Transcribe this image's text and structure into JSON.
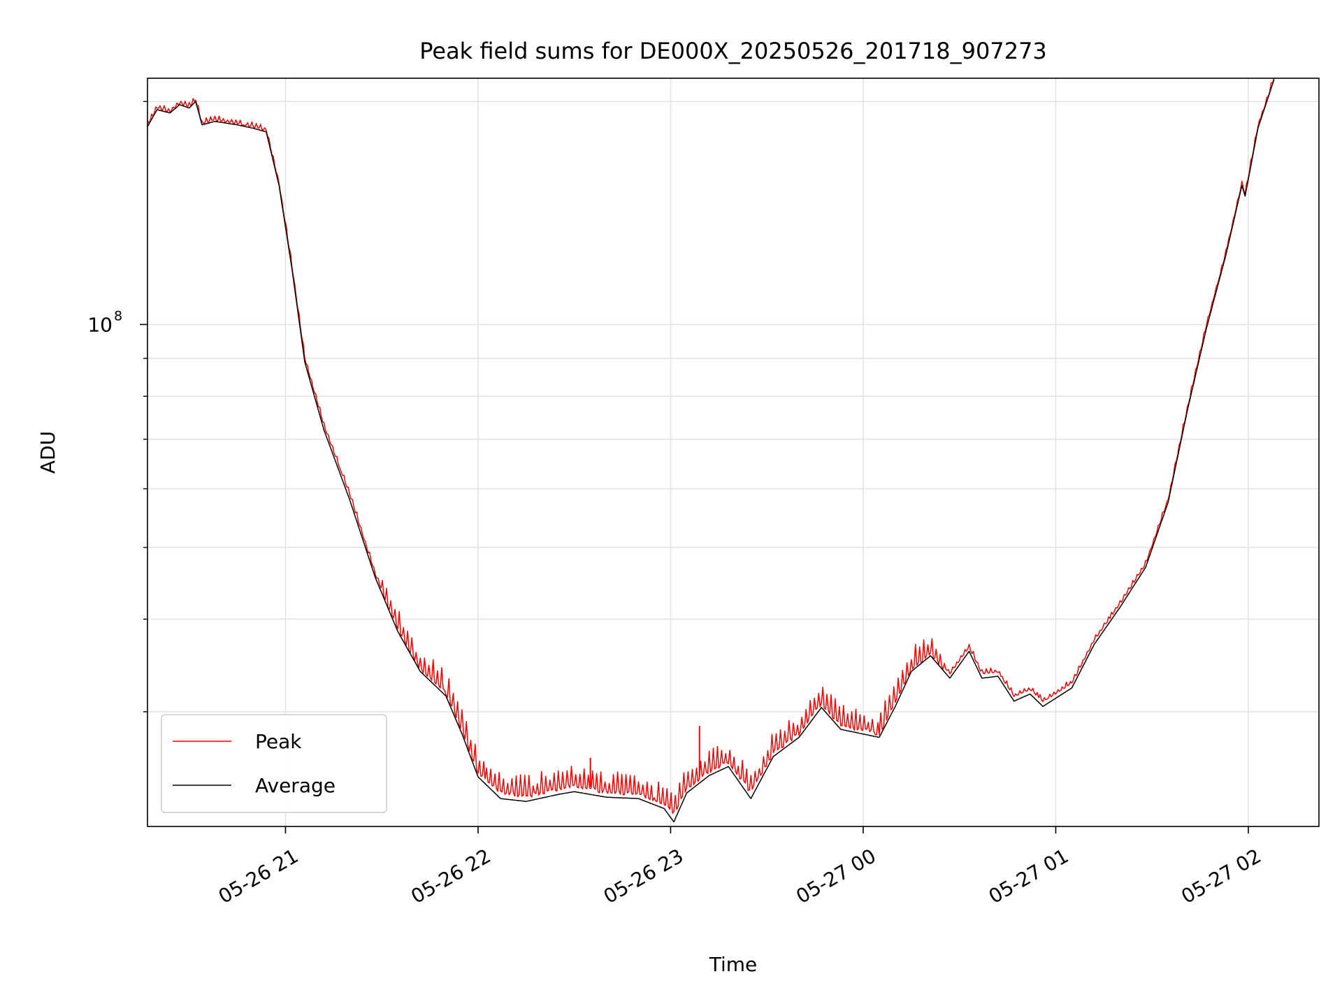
{
  "chart_data": {
    "type": "line",
    "title": "Peak field sums for DE000X_20250526_201718_907273",
    "xlabel": "Time",
    "ylabel": "ADU",
    "yscale": "log",
    "xlim": [
      "2025-05-26 20:17",
      "2025-05-27 02:22"
    ],
    "ylim": [
      21000000,
      215000000
    ],
    "x_ticks": [
      {
        "t": "2025-05-26 21:00",
        "label": "05-26 21"
      },
      {
        "t": "2025-05-26 22:00",
        "label": "05-26 22"
      },
      {
        "t": "2025-05-26 23:00",
        "label": "05-26 23"
      },
      {
        "t": "2025-05-27 00:00",
        "label": "05-27 00"
      },
      {
        "t": "2025-05-27 01:00",
        "label": "05-27 01"
      },
      {
        "t": "2025-05-27 02:00",
        "label": "05-27 02"
      }
    ],
    "y_major_ticks": [
      {
        "value": 100000000,
        "label": "10",
        "exponent": "8"
      }
    ],
    "y_minor_ticks": [
      30000000,
      40000000,
      50000000,
      60000000,
      70000000,
      80000000,
      90000000,
      200000000
    ],
    "grid": true,
    "legend_position": "lower-left",
    "series": [
      {
        "name": "Peak",
        "color": "#ff0000",
        "jitter": true,
        "points": [
          [
            "2025-05-26 20:17",
            186000000
          ],
          [
            "2025-05-26 20:20",
            196000000
          ],
          [
            "2025-05-26 20:24",
            194000000
          ],
          [
            "2025-05-26 20:27",
            199000000
          ],
          [
            "2025-05-26 20:30",
            197000000
          ],
          [
            "2025-05-26 20:32",
            201000000
          ],
          [
            "2025-05-26 20:34",
            187000000
          ],
          [
            "2025-05-26 20:38",
            189000000
          ],
          [
            "2025-05-26 20:45",
            187000000
          ],
          [
            "2025-05-26 20:50",
            185000000
          ],
          [
            "2025-05-26 20:54",
            183000000
          ],
          [
            "2025-05-26 20:58",
            155000000
          ],
          [
            "2025-05-26 21:02",
            120000000
          ],
          [
            "2025-05-26 21:06",
            90000000
          ],
          [
            "2025-05-26 21:12",
            73000000
          ],
          [
            "2025-05-26 21:20",
            59000000
          ],
          [
            "2025-05-26 21:28",
            46000000
          ],
          [
            "2025-05-26 21:35",
            39000000
          ],
          [
            "2025-05-26 21:42",
            34500000
          ],
          [
            "2025-05-26 21:50",
            32000000
          ],
          [
            "2025-05-26 21:55",
            28500000
          ],
          [
            "2025-05-26 22:00",
            25000000
          ],
          [
            "2025-05-26 22:07",
            23500000
          ],
          [
            "2025-05-26 22:15",
            23200000
          ],
          [
            "2025-05-26 22:25",
            23700000
          ],
          [
            "2025-05-26 22:30",
            24000000
          ],
          [
            "2025-05-26 22:40",
            23500000
          ],
          [
            "2025-05-26 22:50",
            23400000
          ],
          [
            "2025-05-26 22:58",
            22700000
          ],
          [
            "2025-05-26 23:01",
            22000000
          ],
          [
            "2025-05-26 23:05",
            23800000
          ],
          [
            "2025-05-26 23:12",
            25100000
          ],
          [
            "2025-05-26 23:18",
            25800000
          ],
          [
            "2025-05-26 23:25",
            23500000
          ],
          [
            "2025-05-26 23:32",
            26600000
          ],
          [
            "2025-05-26 23:40",
            28200000
          ],
          [
            "2025-05-26 23:47",
            31000000
          ],
          [
            "2025-05-26 23:53",
            28900000
          ],
          [
            "2025-05-27 00:05",
            28200000
          ],
          [
            "2025-05-27 00:10",
            31000000
          ],
          [
            "2025-05-27 00:15",
            34500000
          ],
          [
            "2025-05-27 00:21",
            36200000
          ],
          [
            "2025-05-27 00:27",
            33800000
          ],
          [
            "2025-05-27 00:33",
            36700000
          ],
          [
            "2025-05-27 00:37",
            33800000
          ],
          [
            "2025-05-27 00:42",
            34000000
          ],
          [
            "2025-05-27 00:47",
            31500000
          ],
          [
            "2025-05-27 00:52",
            32200000
          ],
          [
            "2025-05-27 00:56",
            31000000
          ],
          [
            "2025-05-27 01:05",
            32800000
          ],
          [
            "2025-05-27 01:12",
            37500000
          ],
          [
            "2025-05-27 01:20",
            42000000
          ],
          [
            "2025-05-27 01:28",
            47500000
          ],
          [
            "2025-05-27 01:35",
            58000000
          ],
          [
            "2025-05-27 01:41",
            77000000
          ],
          [
            "2025-05-27 01:47",
            100000000
          ],
          [
            "2025-05-27 01:53",
            125000000
          ],
          [
            "2025-05-27 01:58",
            155000000
          ],
          [
            "2025-05-27 01:59",
            150000000
          ],
          [
            "2025-05-27 02:03",
            185000000
          ],
          [
            "2025-05-27 02:08",
            215000000
          ]
        ]
      },
      {
        "name": "Average",
        "color": "#000000",
        "jitter": false,
        "points": [
          [
            "2025-05-26 20:17",
            185000000
          ],
          [
            "2025-05-26 20:20",
            195000000
          ],
          [
            "2025-05-26 20:24",
            193000000
          ],
          [
            "2025-05-26 20:27",
            198000000
          ],
          [
            "2025-05-26 20:30",
            196000000
          ],
          [
            "2025-05-26 20:32",
            200000000
          ],
          [
            "2025-05-26 20:34",
            186000000
          ],
          [
            "2025-05-26 20:38",
            188000000
          ],
          [
            "2025-05-26 20:45",
            186000000
          ],
          [
            "2025-05-26 20:50",
            184000000
          ],
          [
            "2025-05-26 20:54",
            182000000
          ],
          [
            "2025-05-26 20:58",
            154000000
          ],
          [
            "2025-05-26 21:02",
            119000000
          ],
          [
            "2025-05-26 21:06",
            89000000
          ],
          [
            "2025-05-26 21:12",
            72000000
          ],
          [
            "2025-05-26 21:20",
            58000000
          ],
          [
            "2025-05-26 21:28",
            45500000
          ],
          [
            "2025-05-26 21:35",
            38500000
          ],
          [
            "2025-05-26 21:42",
            34000000
          ],
          [
            "2025-05-26 21:50",
            31500000
          ],
          [
            "2025-05-26 21:55",
            28000000
          ],
          [
            "2025-05-26 22:00",
            24500000
          ],
          [
            "2025-05-26 22:07",
            22900000
          ],
          [
            "2025-05-26 22:15",
            22700000
          ],
          [
            "2025-05-26 22:25",
            23200000
          ],
          [
            "2025-05-26 22:30",
            23400000
          ],
          [
            "2025-05-26 22:40",
            23000000
          ],
          [
            "2025-05-26 22:50",
            22900000
          ],
          [
            "2025-05-26 22:58",
            22200000
          ],
          [
            "2025-05-26 23:01",
            21300000
          ],
          [
            "2025-05-26 23:05",
            23300000
          ],
          [
            "2025-05-26 23:12",
            24600000
          ],
          [
            "2025-05-26 23:18",
            25300000
          ],
          [
            "2025-05-26 23:25",
            22900000
          ],
          [
            "2025-05-26 23:32",
            26100000
          ],
          [
            "2025-05-26 23:40",
            27700000
          ],
          [
            "2025-05-26 23:47",
            30400000
          ],
          [
            "2025-05-26 23:53",
            28400000
          ],
          [
            "2025-05-27 00:05",
            27700000
          ],
          [
            "2025-05-27 00:10",
            30500000
          ],
          [
            "2025-05-27 00:15",
            34000000
          ],
          [
            "2025-05-27 00:21",
            35700000
          ],
          [
            "2025-05-27 00:27",
            33300000
          ],
          [
            "2025-05-27 00:33",
            36200000
          ],
          [
            "2025-05-27 00:37",
            33300000
          ],
          [
            "2025-05-27 00:42",
            33500000
          ],
          [
            "2025-05-27 00:47",
            31000000
          ],
          [
            "2025-05-27 00:52",
            31700000
          ],
          [
            "2025-05-27 00:56",
            30500000
          ],
          [
            "2025-05-27 01:05",
            32300000
          ],
          [
            "2025-05-27 01:12",
            37000000
          ],
          [
            "2025-05-27 01:20",
            41500000
          ],
          [
            "2025-05-27 01:28",
            47000000
          ],
          [
            "2025-05-27 01:35",
            57500000
          ],
          [
            "2025-05-27 01:41",
            76500000
          ],
          [
            "2025-05-27 01:47",
            99000000
          ],
          [
            "2025-05-27 01:53",
            124000000
          ],
          [
            "2025-05-27 01:58",
            154000000
          ],
          [
            "2025-05-27 01:59",
            149000000
          ],
          [
            "2025-05-27 02:03",
            184000000
          ],
          [
            "2025-05-27 02:08",
            214000000
          ]
        ]
      }
    ],
    "spikes": [
      {
        "series": "Peak",
        "t": "2025-05-26 22:35",
        "value": 26000000
      },
      {
        "series": "Peak",
        "t": "2025-05-26 23:09",
        "value": 28700000
      }
    ]
  }
}
